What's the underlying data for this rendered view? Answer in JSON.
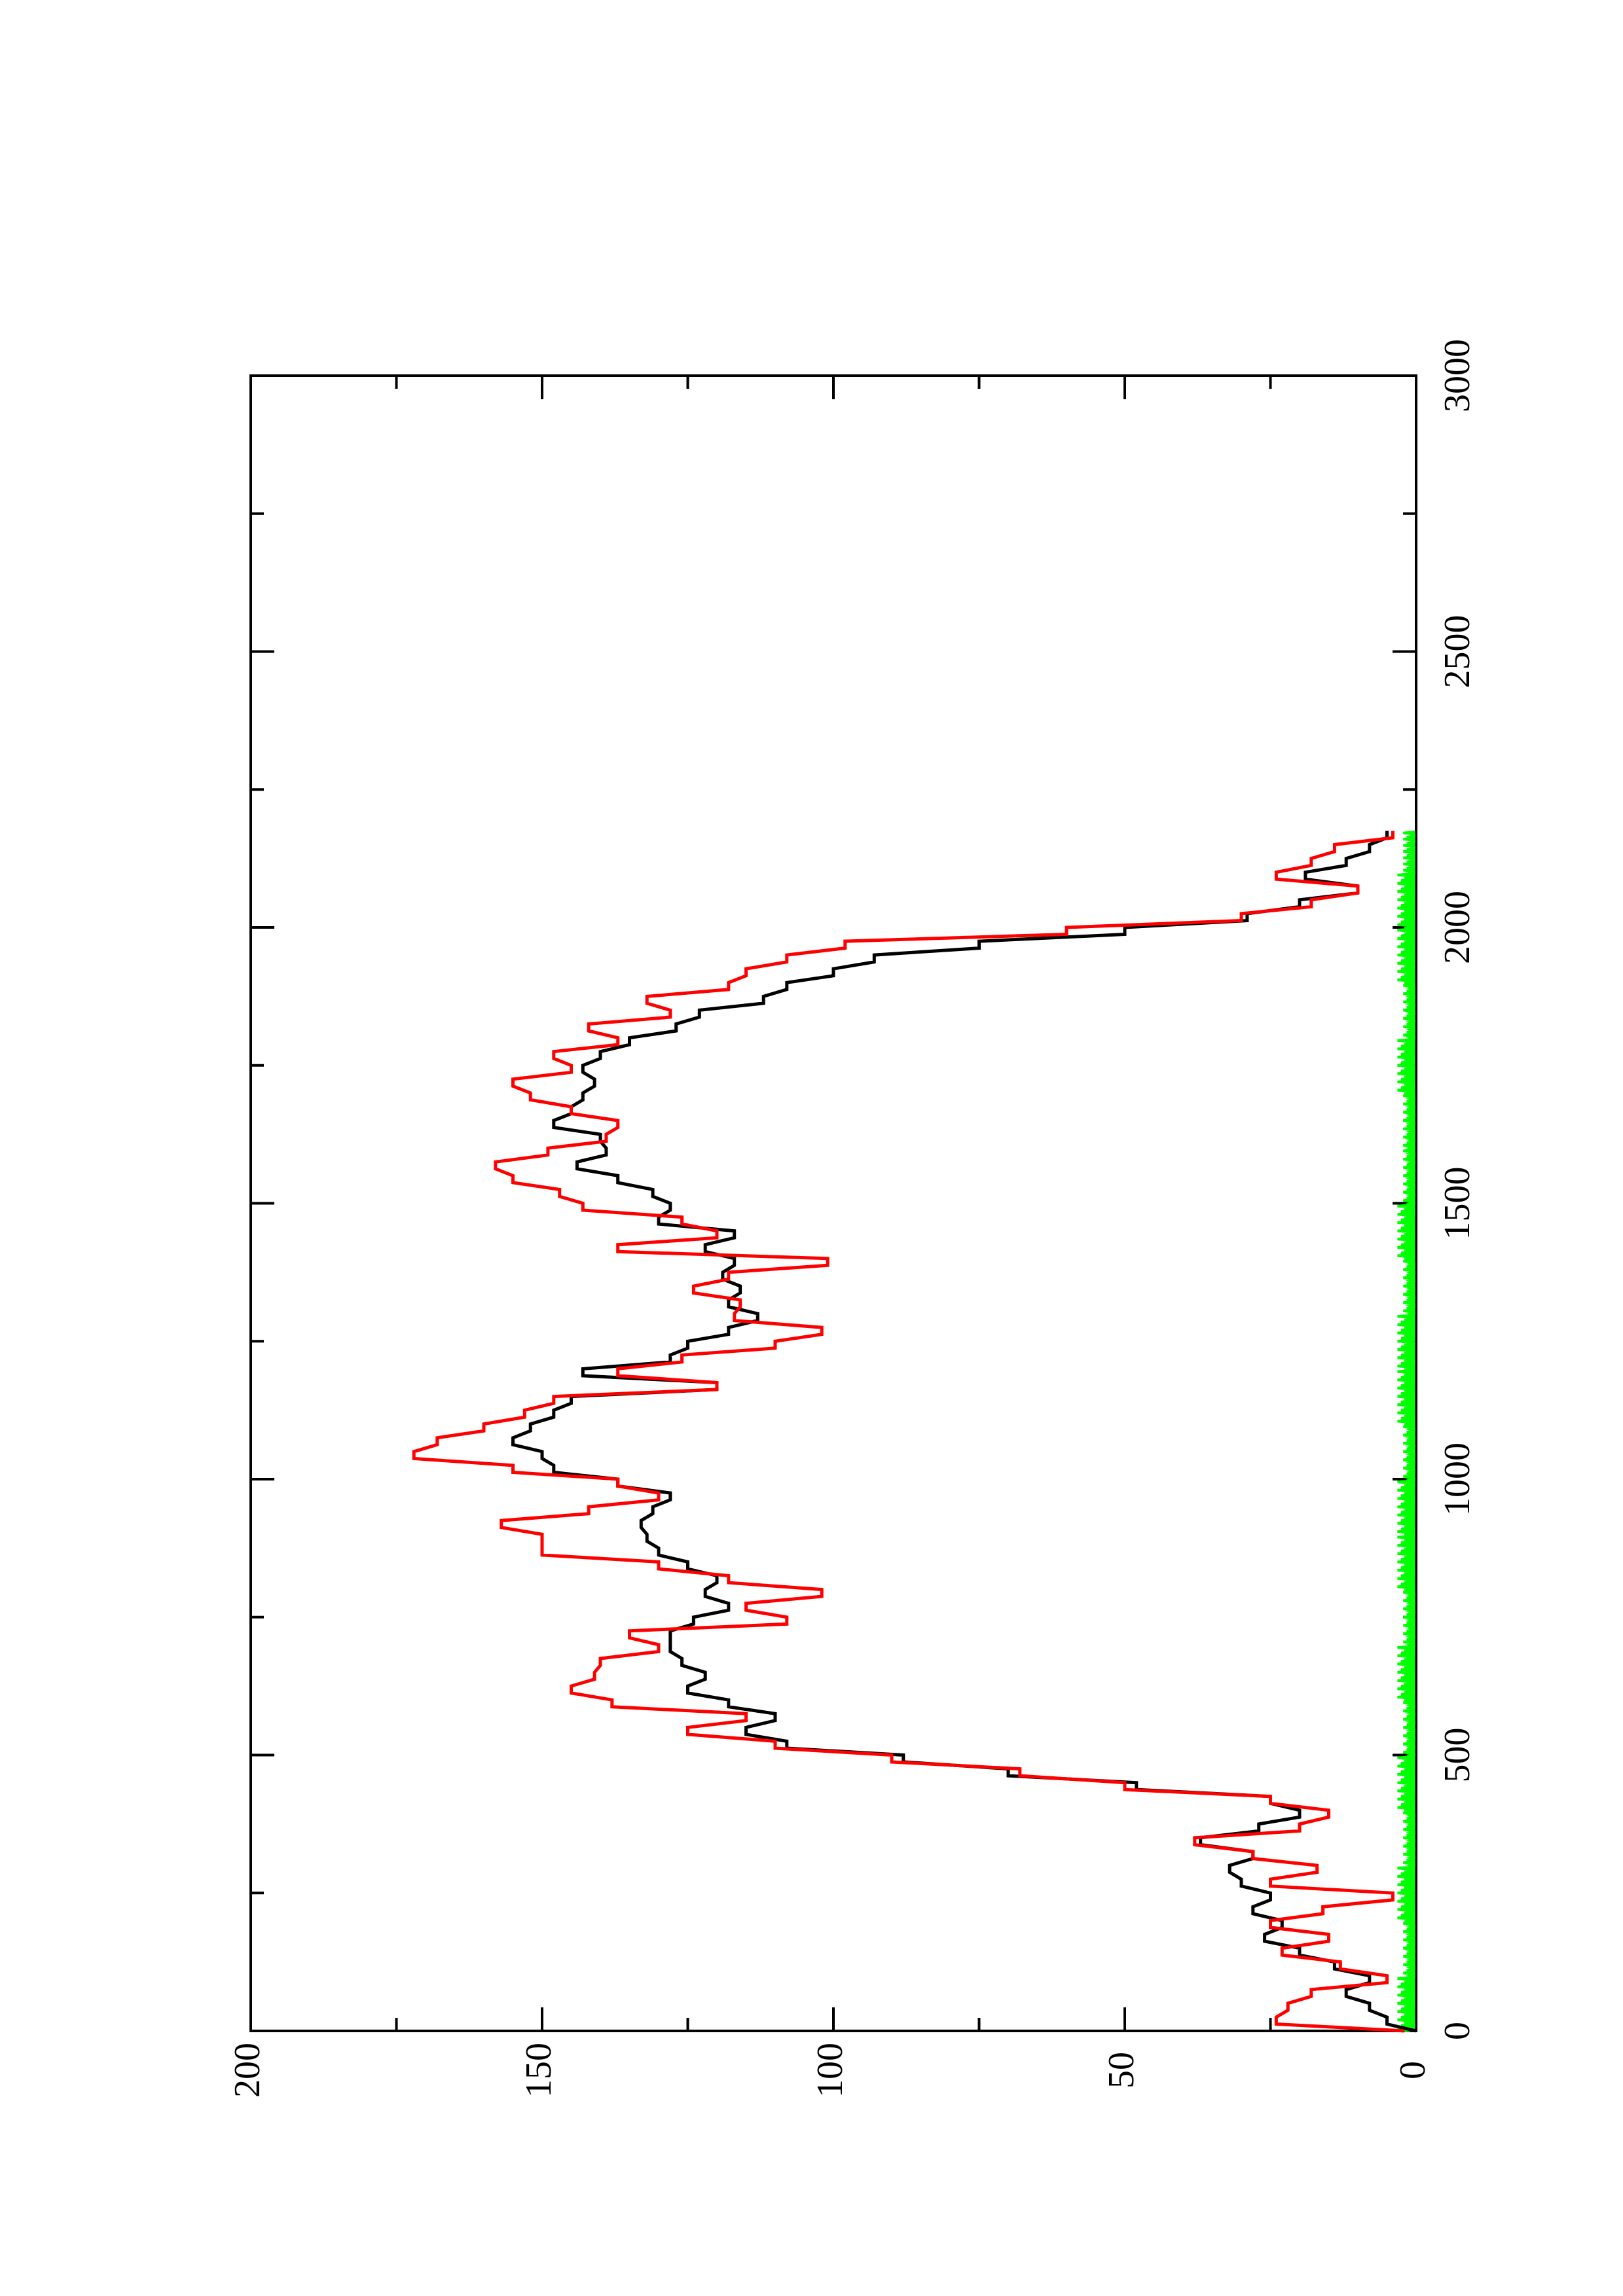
{
  "chart_data": {
    "type": "line",
    "orientation": "rotated-90-counterclockwise",
    "title": "",
    "xlabel": "",
    "ylabel": "",
    "xlim": [
      0,
      3000
    ],
    "ylim": [
      0,
      200
    ],
    "x_ticks": [
      0,
      500,
      1000,
      1500,
      2000,
      2500,
      3000
    ],
    "y_ticks": [
      0,
      50,
      100,
      150,
      200
    ],
    "grid": false,
    "legend": "none",
    "series": [
      {
        "color": "#000000",
        "style": "solid",
        "x": [
          0,
          25,
          50,
          75,
          100,
          125,
          150,
          175,
          200,
          225,
          250,
          275,
          300,
          325,
          350,
          375,
          400,
          425,
          450,
          475,
          500,
          525,
          550,
          575,
          600,
          625,
          650,
          675,
          700,
          725,
          750,
          775,
          800,
          825,
          850,
          875,
          900,
          925,
          950,
          975,
          1000,
          1025,
          1050,
          1075,
          1100,
          1125,
          1150,
          1175,
          1200,
          1225,
          1250,
          1275,
          1300,
          1325,
          1350,
          1375,
          1400,
          1425,
          1450,
          1475,
          1500,
          1525,
          1550,
          1575,
          1600,
          1625,
          1650,
          1675,
          1700,
          1725,
          1750,
          1775,
          1800,
          1825,
          1850,
          1875,
          1900,
          1925,
          1950,
          1975,
          2000,
          2025,
          2050,
          2075,
          2100,
          2125,
          2150,
          2175
        ],
        "y": [
          0,
          5,
          8,
          12,
          8,
          14,
          20,
          26,
          23,
          28,
          25,
          30,
          32,
          28,
          37,
          27,
          20,
          25,
          48,
          70,
          88,
          108,
          115,
          110,
          118,
          125,
          122,
          126,
          128,
          128,
          124,
          118,
          122,
          120,
          125,
          130,
          132,
          133,
          131,
          128,
          137,
          148,
          150,
          155,
          152,
          148,
          145,
          120,
          143,
          128,
          125,
          118,
          113,
          118,
          116,
          119,
          117,
          122,
          117,
          130,
          128,
          131,
          137,
          144,
          139,
          140,
          148,
          145,
          143,
          141,
          143,
          140,
          135,
          127,
          123,
          112,
          108,
          100,
          93,
          75,
          50,
          29,
          20,
          10,
          19,
          12,
          8,
          5
        ]
      },
      {
        "color": "#ff0000",
        "style": "solid",
        "x": [
          0,
          25,
          50,
          75,
          100,
          125,
          150,
          175,
          200,
          225,
          250,
          275,
          300,
          325,
          350,
          375,
          400,
          425,
          450,
          475,
          500,
          525,
          550,
          575,
          600,
          625,
          650,
          675,
          700,
          725,
          750,
          775,
          800,
          825,
          850,
          875,
          900,
          925,
          950,
          975,
          1000,
          1025,
          1050,
          1075,
          1100,
          1125,
          1150,
          1175,
          1200,
          1225,
          1250,
          1275,
          1300,
          1325,
          1350,
          1375,
          1400,
          1425,
          1450,
          1475,
          1500,
          1525,
          1550,
          1575,
          1600,
          1625,
          1650,
          1675,
          1700,
          1725,
          1750,
          1775,
          1800,
          1825,
          1850,
          1875,
          1900,
          1925,
          1950,
          1975,
          2000,
          2025,
          2050,
          2075,
          2100,
          2125,
          2150,
          2175
        ],
        "y": [
          2,
          24,
          22,
          18,
          5,
          13,
          23,
          15,
          25,
          16,
          4,
          25,
          17,
          28,
          38,
          20,
          15,
          25,
          50,
          68,
          90,
          110,
          125,
          115,
          138,
          145,
          141,
          140,
          130,
          135,
          108,
          115,
          102,
          118,
          130,
          150,
          150,
          157,
          142,
          130,
          137,
          155,
          172,
          168,
          160,
          153,
          148,
          120,
          137,
          126,
          110,
          102,
          117,
          116,
          124,
          118,
          101,
          137,
          120,
          126,
          143,
          147,
          155,
          158,
          149,
          139,
          137,
          145,
          152,
          155,
          145,
          148,
          137,
          142,
          128,
          132,
          118,
          115,
          108,
          98,
          60,
          30,
          18,
          10,
          24,
          18,
          14,
          4
        ]
      },
      {
        "color": "#00ff00",
        "style": "noisy",
        "x": [
          0,
          100,
          200,
          300,
          400,
          500,
          600,
          700,
          800,
          900,
          1000,
          1100,
          1200,
          1300,
          1400,
          1500,
          1600,
          1700,
          1800,
          1900,
          2000,
          2100,
          2175
        ],
        "y": [
          2,
          1,
          2,
          1,
          2,
          1,
          2,
          1,
          2,
          2,
          1,
          2,
          2,
          1,
          2,
          1,
          1,
          2,
          1,
          2,
          2,
          1,
          1
        ]
      }
    ]
  }
}
